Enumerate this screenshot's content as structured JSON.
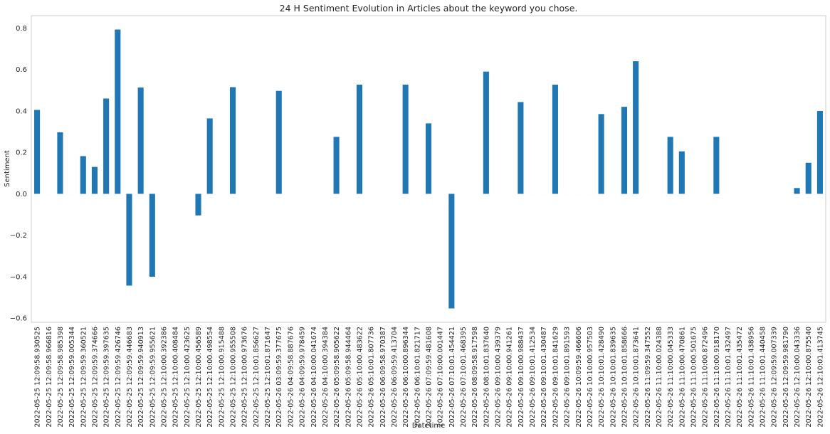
{
  "chart_data": {
    "type": "bar",
    "title": "24 H Sentiment Evolution in Articles about the keyword you chose.",
    "xlabel": "Datetime",
    "ylabel": "Sentiment",
    "ylim": [
      -0.62,
      0.86
    ],
    "yticks": [
      -0.6,
      -0.4,
      -0.2,
      0.0,
      0.2,
      0.4,
      0.6,
      0.8
    ],
    "ytick_labels": [
      "−0.6",
      "−0.4",
      "−0.2",
      "0.0",
      "0.2",
      "0.4",
      "0.6",
      "0.8"
    ],
    "grid": false,
    "bar_color": "#1f77b4",
    "categories": [
      "2022-05-25 12:09:58.930525",
      "2022-05-25 12:09:58.966816",
      "2022-05-25 12:09:58.985398",
      "2022-05-25 12:09:59.005344",
      "2022-05-25 12:09:59.360521",
      "2022-05-25 12:09:59.374666",
      "2022-05-25 12:09:59.397635",
      "2022-05-25 12:09:59.426746",
      "2022-05-25 12:09:59.446683",
      "2022-05-25 12:09:59.940913",
      "2022-05-25 12:09:59.955621",
      "2022-05-25 12:10:00.392386",
      "2022-05-25 12:10:00.408484",
      "2022-05-25 12:10:00.423625",
      "2022-05-25 12:10:00.456589",
      "2022-05-25 12:10:00.498554",
      "2022-05-25 12:10:00.915488",
      "2022-05-25 12:10:00.955508",
      "2022-05-25 12:10:00.973676",
      "2022-05-25 12:10:01.856627",
      "2022-05-25 12:10:01.871647",
      "2022-05-26 03:09:59.377675",
      "2022-05-26 04:09:58.887676",
      "2022-05-26 04:09:59.978459",
      "2022-05-26 04:10:00.041674",
      "2022-05-26 04:10:00.394384",
      "2022-05-26 05:09:58.905622",
      "2022-05-26 05:09:58.944464",
      "2022-05-26 05:10:00.483622",
      "2022-05-26 05:10:01.807736",
      "2022-05-26 06:09:58.970387",
      "2022-05-26 06:09:59.413704",
      "2022-05-26 06:10:00.896344",
      "2022-05-26 06:10:01.821717",
      "2022-05-26 07:09:59.481608",
      "2022-05-26 07:10:00.001447",
      "2022-05-26 07:10:01.454421",
      "2022-05-26 07:10:01.468395",
      "2022-05-26 08:09:58.917598",
      "2022-05-26 08:10:01.837640",
      "2022-05-26 09:10:00.439379",
      "2022-05-26 09:10:00.941261",
      "2022-05-26 09:10:00.988437",
      "2022-05-26 09:10:01.412534",
      "2022-05-26 09:10:01.430487",
      "2022-05-26 09:10:01.841629",
      "2022-05-26 09:10:01.891593",
      "2022-05-26 10:09:59.466606",
      "2022-05-26 10:10:00.957503",
      "2022-05-26 10:10:01.428490",
      "2022-05-26 10:10:01.839635",
      "2022-05-26 10:10:01.858666",
      "2022-05-26 10:10:01.873641",
      "2022-05-26 11:09:59.347552",
      "2022-05-26 11:10:00.024388",
      "2022-05-26 11:10:00.045333",
      "2022-05-26 11:10:00.470861",
      "2022-05-26 11:10:00.501675",
      "2022-05-26 11:10:00.872496",
      "2022-05-26 11:10:00.918170",
      "2022-05-26 11:10:01.432497",
      "2022-05-26 11:10:01.435472",
      "2022-05-26 11:10:01.438956",
      "2022-05-26 11:10:01.440458",
      "2022-05-26 12:09:59.007339",
      "2022-05-26 12:09:59.981790",
      "2022-05-26 12:10:00.043336",
      "2022-05-26 12:10:00.875540",
      "2022-05-26 12:10:01.413745"
    ],
    "values": [
      0.405,
      0,
      0.297,
      0,
      0.182,
      0.13,
      0.46,
      0.793,
      -0.443,
      0.513,
      -0.4,
      0,
      0,
      0,
      -0.104,
      0.364,
      0,
      0.515,
      0,
      0,
      0,
      0.497,
      0,
      0,
      0,
      0,
      0.275,
      0,
      0.527,
      0,
      0,
      0,
      0.527,
      0,
      0.34,
      0,
      -0.553,
      0,
      0,
      0.59,
      0,
      0,
      0.443,
      0,
      0,
      0.527,
      0,
      0,
      0,
      0.385,
      0,
      0.42,
      0.64,
      0,
      0,
      0.275,
      0.205,
      0,
      0,
      0.275,
      0,
      0,
      0,
      0,
      0,
      0,
      0.028,
      0.15,
      0.4
    ]
  }
}
